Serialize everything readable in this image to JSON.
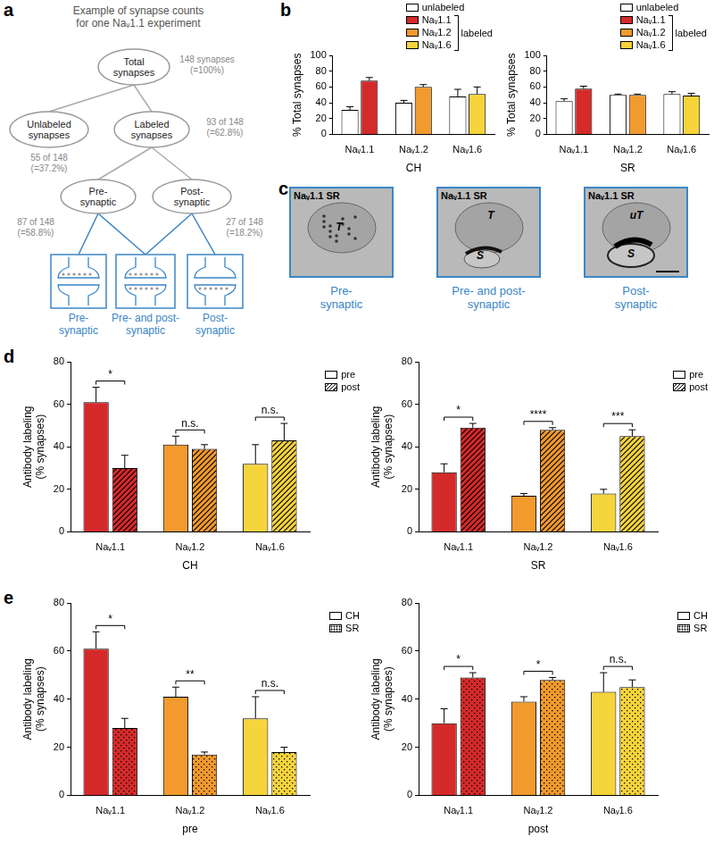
{
  "panel_labels": [
    "a",
    "b",
    "c",
    "d",
    "e"
  ],
  "diagram": {
    "title_lines": [
      "Example of synapse counts",
      "for one Naᵥ1.1 experiment"
    ],
    "nodes": [
      {
        "label_lines": [
          "Total",
          "synapses"
        ],
        "count_lines": [
          "148 synapses",
          "(=100%)"
        ]
      },
      {
        "label_lines": [
          "Unlabeled",
          "synapses"
        ],
        "count_lines": [
          "55 of 148",
          "(=37.2%)"
        ]
      },
      {
        "label_lines": [
          "Labeled",
          "synapses"
        ],
        "count_lines": [
          "93 of 148",
          "(=62.8%)"
        ]
      },
      {
        "label_lines": [
          "Pre-",
          "synaptic"
        ],
        "count_lines": [
          "87 of 148",
          "(=58.8%)"
        ]
      },
      {
        "label_lines": [
          "Post-",
          "synaptic"
        ],
        "count_lines": [
          "27 of 148",
          "(=18.2%)"
        ]
      }
    ],
    "synapse_types": [
      {
        "label_lines": [
          "Pre-",
          "synaptic"
        ]
      },
      {
        "label_lines": [
          "Pre- and post-",
          "synaptic"
        ]
      },
      {
        "label_lines": [
          "Post-",
          "synaptic"
        ]
      }
    ]
  },
  "images": [
    {
      "header": "Naᵥ1.1 SR",
      "marks": [
        "T"
      ],
      "caption_lines": [
        "Pre-",
        "synaptic"
      ]
    },
    {
      "header": "Naᵥ1.1 SR",
      "marks": [
        "T",
        "S"
      ],
      "caption_lines": [
        "Pre- and post-",
        "synaptic"
      ]
    },
    {
      "header": "Naᵥ1.1 SR",
      "marks": [
        "uT",
        "S"
      ],
      "caption_lines": [
        "Post-",
        "synaptic"
      ]
    }
  ],
  "chart_data": [
    {
      "type": "bar",
      "y_label": "% Total synapses",
      "x_label": "CH",
      "categories": [
        "Naᵥ1.1",
        "Naᵥ1.2",
        "Naᵥ1.6"
      ],
      "ylim": [
        0,
        100
      ],
      "yticks": [
        0,
        20,
        40,
        60,
        80,
        100
      ],
      "grid": false,
      "legend": "top right",
      "series": [
        {
          "name": "unlabeled",
          "color": "#ffffff",
          "values": [
            31,
            40,
            48
          ],
          "errors": [
            4,
            3,
            9
          ]
        },
        {
          "name": "labeled",
          "colors": [
            "#d42a2a",
            "#f29a2e",
            "#f6d43b"
          ],
          "legend_names": [
            "Naᵥ1.1",
            "Naᵥ1.2",
            "Naᵥ1.6"
          ],
          "values": [
            68,
            60,
            51
          ],
          "errors": [
            4,
            3,
            9
          ]
        }
      ]
    },
    {
      "type": "bar",
      "y_label": "% Total synapses",
      "x_label": "SR",
      "categories": [
        "Naᵥ1.1",
        "Naᵥ1.2",
        "Naᵥ1.6"
      ],
      "ylim": [
        0,
        100
      ],
      "yticks": [
        0,
        20,
        40,
        60,
        80,
        100
      ],
      "grid": false,
      "legend": "top right",
      "series": [
        {
          "name": "unlabeled",
          "color": "#ffffff",
          "values": [
            42,
            50,
            51
          ],
          "errors": [
            3,
            1,
            3
          ]
        },
        {
          "name": "labeled",
          "colors": [
            "#d42a2a",
            "#f29a2e",
            "#f6d43b"
          ],
          "legend_names": [
            "Naᵥ1.1",
            "Naᵥ1.2",
            "Naᵥ1.6"
          ],
          "values": [
            58,
            50,
            49
          ],
          "errors": [
            3,
            1,
            3
          ]
        }
      ]
    },
    {
      "type": "bar",
      "y_label": [
        "Antibody labeling",
        "(% synapses)"
      ],
      "x_label": "CH",
      "categories": [
        "Naᵥ1.1",
        "Naᵥ1.2",
        "Naᵥ1.6"
      ],
      "ylim": [
        0,
        80
      ],
      "yticks": [
        0,
        20,
        40,
        60,
        80
      ],
      "grid": false,
      "legend": "right",
      "series": [
        {
          "name": "pre",
          "colors": [
            "#d42a2a",
            "#f29a2e",
            "#f6d43b"
          ],
          "values": [
            61,
            41,
            32
          ],
          "errors": [
            7,
            4,
            9
          ]
        },
        {
          "name": "post",
          "colors": [
            "#d42a2a",
            "#f29a2e",
            "#f6d43b"
          ],
          "values": [
            30,
            39,
            43
          ],
          "errors": [
            6,
            2,
            8
          ]
        }
      ],
      "significance": [
        {
          "category": "Naᵥ1.1",
          "text": "*"
        },
        {
          "category": "Naᵥ1.2",
          "text": "n.s."
        },
        {
          "category": "Naᵥ1.6",
          "text": "n.s."
        }
      ]
    },
    {
      "type": "bar",
      "y_label": [
        "Antibody labeling",
        "(% synapses)"
      ],
      "x_label": "SR",
      "categories": [
        "Naᵥ1.1",
        "Naᵥ1.2",
        "Naᵥ1.6"
      ],
      "ylim": [
        0,
        80
      ],
      "yticks": [
        0,
        20,
        40,
        60,
        80
      ],
      "grid": false,
      "legend": "right",
      "series": [
        {
          "name": "pre",
          "colors": [
            "#d42a2a",
            "#f29a2e",
            "#f6d43b"
          ],
          "values": [
            28,
            17,
            18
          ],
          "errors": [
            4,
            1,
            2
          ]
        },
        {
          "name": "post",
          "colors": [
            "#d42a2a",
            "#f29a2e",
            "#f6d43b"
          ],
          "values": [
            49,
            48,
            45
          ],
          "errors": [
            2,
            1,
            3
          ]
        }
      ],
      "significance": [
        {
          "category": "Naᵥ1.1",
          "text": "*"
        },
        {
          "category": "Naᵥ1.2",
          "text": "****"
        },
        {
          "category": "Naᵥ1.6",
          "text": "***"
        }
      ]
    },
    {
      "type": "bar",
      "y_label": [
        "Antibody labeling",
        "(% synapses)"
      ],
      "x_label": "pre",
      "categories": [
        "Naᵥ1.1",
        "Naᵥ1.2",
        "Naᵥ1.6"
      ],
      "ylim": [
        0,
        80
      ],
      "yticks": [
        0,
        20,
        40,
        60,
        80
      ],
      "grid": false,
      "legend": "right",
      "series": [
        {
          "name": "CH",
          "colors": [
            "#d42a2a",
            "#f29a2e",
            "#f6d43b"
          ],
          "values": [
            61,
            41,
            32
          ],
          "errors": [
            7,
            4,
            9
          ]
        },
        {
          "name": "SR",
          "colors": [
            "#d42a2a",
            "#f29a2e",
            "#f6d43b"
          ],
          "values": [
            28,
            17,
            18
          ],
          "errors": [
            4,
            1,
            2
          ]
        }
      ],
      "significance": [
        {
          "category": "Naᵥ1.1",
          "text": "*"
        },
        {
          "category": "Naᵥ1.2",
          "text": "**"
        },
        {
          "category": "Naᵥ1.6",
          "text": "n.s."
        }
      ]
    },
    {
      "type": "bar",
      "y_label": [
        "Antibody labeling",
        "(% synapses)"
      ],
      "x_label": "post",
      "categories": [
        "Naᵥ1.1",
        "Naᵥ1.2",
        "Naᵥ1.6"
      ],
      "ylim": [
        0,
        80
      ],
      "yticks": [
        0,
        20,
        40,
        60,
        80
      ],
      "grid": false,
      "legend": "right",
      "series": [
        {
          "name": "CH",
          "colors": [
            "#d42a2a",
            "#f29a2e",
            "#f6d43b"
          ],
          "values": [
            30,
            39,
            43
          ],
          "errors": [
            6,
            2,
            8
          ]
        },
        {
          "name": "SR",
          "colors": [
            "#d42a2a",
            "#f29a2e",
            "#f6d43b"
          ],
          "values": [
            49,
            48,
            45
          ],
          "errors": [
            2,
            1,
            3
          ]
        }
      ],
      "significance": [
        {
          "category": "Naᵥ1.1",
          "text": "*"
        },
        {
          "category": "Naᵥ1.2",
          "text": "*"
        },
        {
          "category": "Naᵥ1.6",
          "text": "n.s."
        }
      ]
    }
  ]
}
